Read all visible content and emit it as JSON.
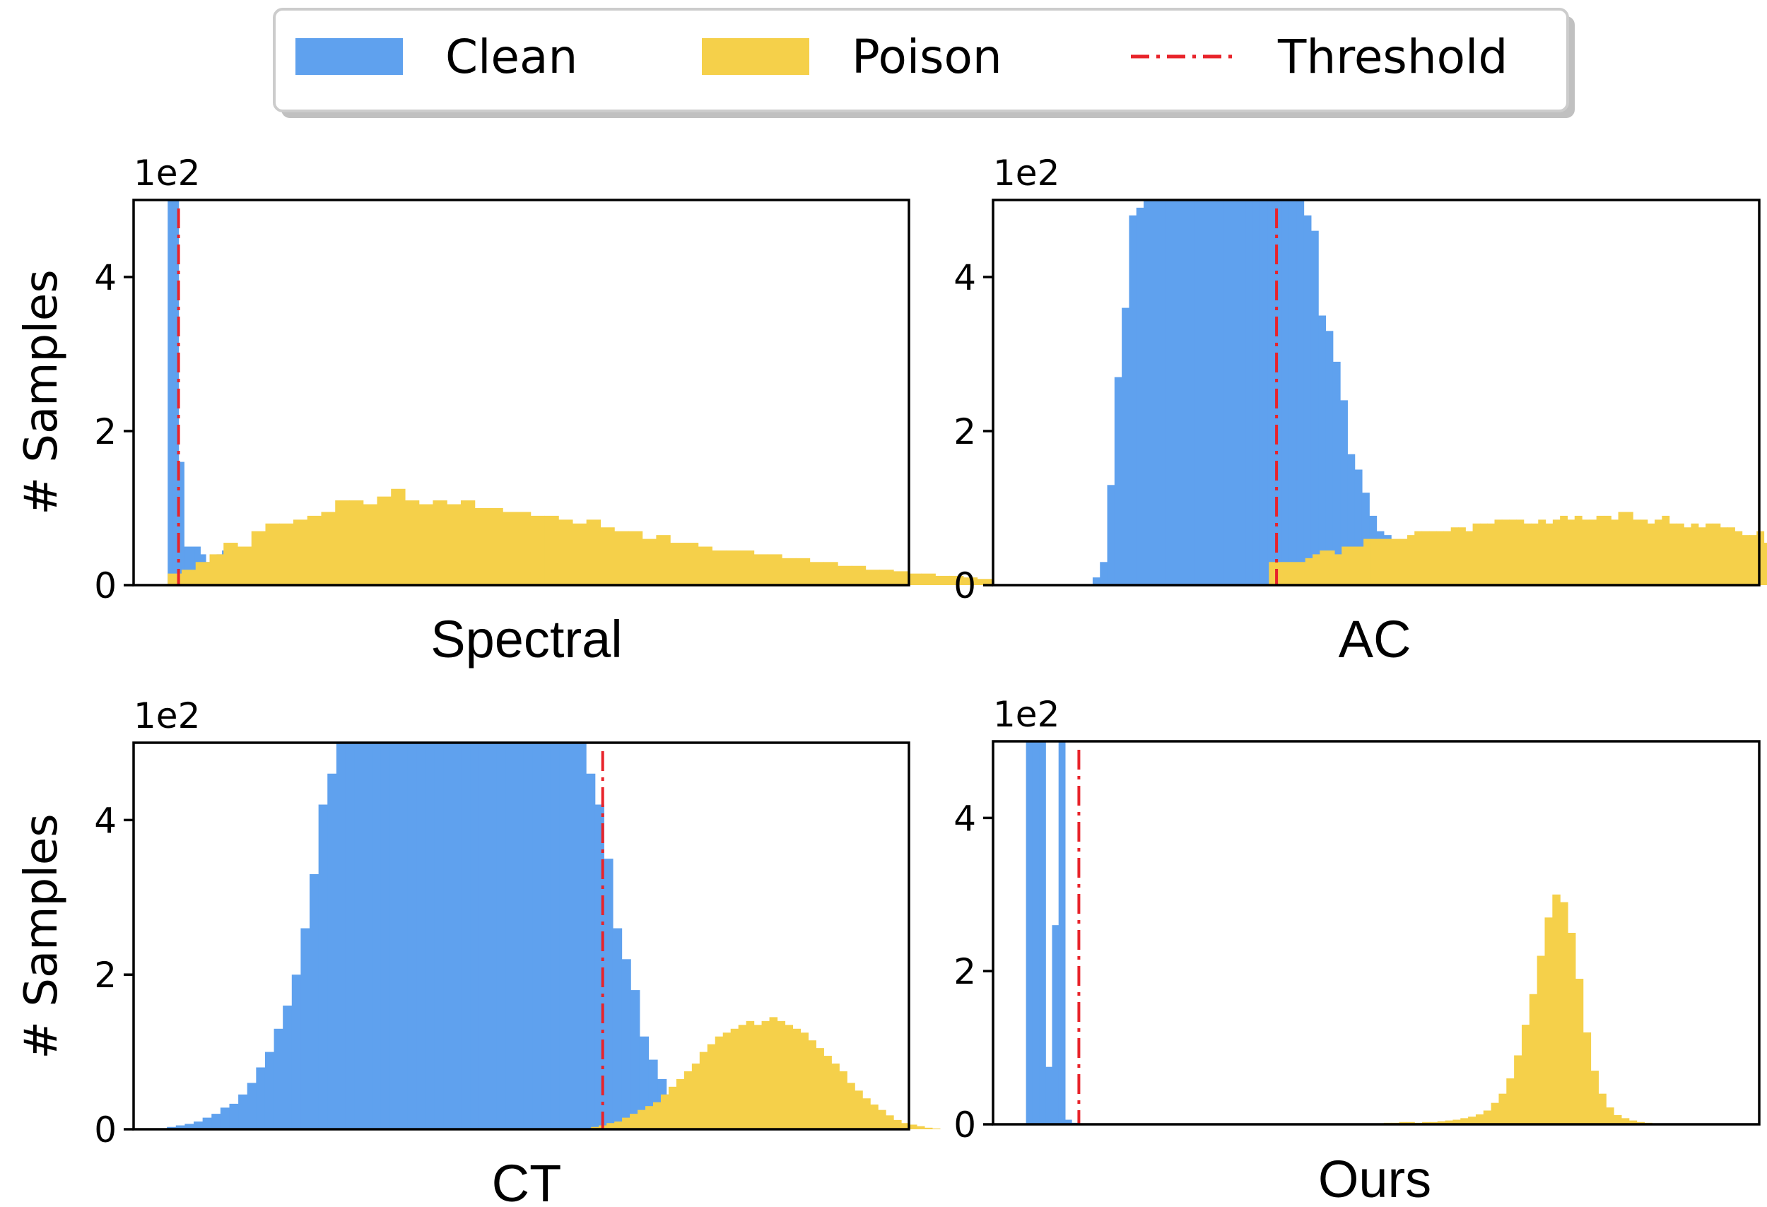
{
  "legend": {
    "position": "top-center",
    "entries": [
      {
        "label": "Clean",
        "kind": "patch",
        "color": "#5FA1EE"
      },
      {
        "label": "Poison",
        "kind": "patch",
        "color": "#F5D04A"
      },
      {
        "label": "Threshold",
        "kind": "dashdot-line",
        "color": "#E8232A"
      }
    ]
  },
  "colors": {
    "clean": "#5FA1EE",
    "poison": "#F5D04A",
    "threshold": "#E8232A"
  },
  "chart_data": [
    {
      "type": "histogram",
      "title": "",
      "xlabel": "Spectral",
      "ylabel": "# Samples",
      "y_multiplier": "1e2",
      "ylim": [
        0,
        5
      ],
      "yticks": [
        0,
        2,
        4
      ],
      "xlim": [
        0,
        100
      ],
      "grid": false,
      "threshold": 5.8,
      "series": [
        {
          "name": "Clean",
          "bin_start": 4.4,
          "bin_width": 0.7,
          "values": [
            5,
            5,
            1.6,
            0.5,
            0.5,
            0.5,
            0.4,
            0.3,
            0.2,
            0.4,
            0.45
          ]
        },
        {
          "name": "Poison",
          "bin_start": 4.4,
          "bin_width": 1.8,
          "values": [
            0.15,
            0.2,
            0.3,
            0.4,
            0.55,
            0.5,
            0.7,
            0.8,
            0.8,
            0.85,
            0.9,
            0.95,
            1.1,
            1.1,
            1.05,
            1.15,
            1.25,
            1.1,
            1.05,
            1.1,
            1.05,
            1.1,
            1.0,
            1.0,
            0.95,
            0.95,
            0.9,
            0.9,
            0.85,
            0.8,
            0.85,
            0.75,
            0.7,
            0.7,
            0.6,
            0.65,
            0.55,
            0.55,
            0.5,
            0.45,
            0.45,
            0.45,
            0.4,
            0.4,
            0.35,
            0.35,
            0.3,
            0.3,
            0.25,
            0.25,
            0.2,
            0.2,
            0.18,
            0.15,
            0.15,
            0.12,
            0.12,
            0.1,
            0.08,
            0.08,
            0.06,
            0.05,
            0.04,
            0.03,
            0.02,
            0.02,
            0.01
          ]
        }
      ]
    },
    {
      "type": "histogram",
      "title": "",
      "xlabel": "AC",
      "ylabel": "",
      "y_multiplier": "1e2",
      "ylim": [
        0,
        5
      ],
      "yticks": [
        0,
        2,
        4
      ],
      "xlim": [
        0,
        100
      ],
      "grid": false,
      "threshold": 37.0,
      "series": [
        {
          "name": "Clean",
          "bin_start": 13.0,
          "bin_width": 0.95,
          "values": [
            0.1,
            0.3,
            1.3,
            2.7,
            3.6,
            4.8,
            4.9,
            5,
            5,
            5,
            5,
            5,
            5,
            5,
            5,
            5,
            5,
            5,
            5,
            5,
            5,
            5,
            5,
            5,
            5,
            5,
            5,
            5,
            5,
            4.8,
            4.6,
            3.5,
            3.3,
            2.9,
            2.4,
            1.7,
            1.5,
            1.2,
            0.9,
            0.7,
            0.65,
            0.55,
            0.4,
            0.3,
            0.2
          ]
        },
        {
          "name": "Poison",
          "bin_start": 36.0,
          "bin_width": 0.95,
          "values": [
            0.3,
            0.3,
            0.3,
            0.3,
            0.3,
            0.35,
            0.4,
            0.45,
            0.45,
            0.4,
            0.5,
            0.5,
            0.5,
            0.6,
            0.6,
            0.6,
            0.6,
            0.6,
            0.6,
            0.65,
            0.7,
            0.7,
            0.7,
            0.7,
            0.7,
            0.75,
            0.75,
            0.7,
            0.8,
            0.8,
            0.8,
            0.85,
            0.85,
            0.85,
            0.85,
            0.8,
            0.8,
            0.85,
            0.8,
            0.85,
            0.9,
            0.85,
            0.9,
            0.85,
            0.85,
            0.9,
            0.9,
            0.85,
            0.95,
            0.95,
            0.85,
            0.85,
            0.8,
            0.85,
            0.9,
            0.8,
            0.8,
            0.75,
            0.8,
            0.75,
            0.8,
            0.8,
            0.75,
            0.75,
            0.7,
            0.65,
            0.65,
            0.7,
            0.55,
            0.6,
            0.55,
            0.5,
            0.45,
            0.5,
            0.45,
            0.4,
            0.35,
            0.35,
            0.3,
            0.3,
            0.25,
            0.22,
            0.2,
            0.18,
            0.15,
            0.13,
            0.12,
            0.1,
            0.08,
            0.06,
            0.05,
            0.04,
            0.03,
            0.02,
            0.02,
            0.01
          ]
        }
      ]
    },
    {
      "type": "histogram",
      "title": "",
      "xlabel": "CT",
      "ylabel": "# Samples",
      "y_multiplier": "1e2",
      "ylim": [
        0,
        5
      ],
      "yticks": [
        0,
        2,
        4
      ],
      "xlim": [
        0,
        100
      ],
      "grid": false,
      "threshold": 60.5,
      "series": [
        {
          "name": "Clean",
          "bin_start": 4.3,
          "bin_width": 1.15,
          "values": [
            0.03,
            0.05,
            0.07,
            0.1,
            0.15,
            0.2,
            0.28,
            0.33,
            0.45,
            0.6,
            0.8,
            1.0,
            1.3,
            1.6,
            2.0,
            2.6,
            3.3,
            4.2,
            4.6,
            5,
            5,
            5,
            5,
            5,
            5,
            5,
            5,
            5,
            5,
            5,
            5,
            5,
            5,
            5,
            5,
            5,
            5,
            5,
            5,
            5,
            5,
            5,
            5,
            5,
            5,
            5,
            5,
            4.6,
            4.2,
            3.5,
            2.6,
            2.2,
            1.8,
            1.2,
            0.9,
            0.65,
            0.45,
            0.35,
            0.2,
            0.12,
            0.08,
            0.05,
            0.03
          ]
        },
        {
          "name": "Poison",
          "bin_start": 59.0,
          "bin_width": 1.0,
          "values": [
            0.03,
            0.05,
            0.08,
            0.1,
            0.15,
            0.2,
            0.25,
            0.3,
            0.35,
            0.45,
            0.55,
            0.65,
            0.75,
            0.85,
            1.0,
            1.1,
            1.2,
            1.25,
            1.3,
            1.35,
            1.4,
            1.35,
            1.4,
            1.45,
            1.4,
            1.35,
            1.3,
            1.25,
            1.15,
            1.05,
            0.95,
            0.85,
            0.75,
            0.6,
            0.5,
            0.4,
            0.32,
            0.25,
            0.18,
            0.12,
            0.08,
            0.06,
            0.04,
            0.02,
            0.01
          ]
        }
      ]
    },
    {
      "type": "histogram",
      "title": "",
      "xlabel": "Ours",
      "ylabel": "",
      "y_multiplier": "1e2",
      "ylim": [
        0,
        5
      ],
      "yticks": [
        0,
        2,
        4
      ],
      "xlim": [
        0,
        100
      ],
      "grid": false,
      "threshold": 11.2,
      "series": [
        {
          "name": "Clean",
          "bin_start": 4.3,
          "bin_width": 0.85,
          "values": [
            5,
            5,
            5,
            0.75,
            2.6,
            5,
            0.06,
            0.02
          ]
        },
        {
          "name": "Poison",
          "bin_start": 50.0,
          "bin_width": 1.0,
          "values": [
            0.01,
            0.02,
            0.02,
            0.03,
            0.03,
            0.02,
            0.03,
            0.03,
            0.04,
            0.05,
            0.06,
            0.08,
            0.1,
            0.13,
            0.18,
            0.28,
            0.4,
            0.6,
            0.9,
            1.3,
            1.7,
            2.2,
            2.7,
            3.0,
            2.9,
            2.5,
            1.9,
            1.2,
            0.7,
            0.4,
            0.22,
            0.12,
            0.08,
            0.05,
            0.03,
            0.02,
            0.01,
            0.01
          ]
        }
      ]
    }
  ]
}
